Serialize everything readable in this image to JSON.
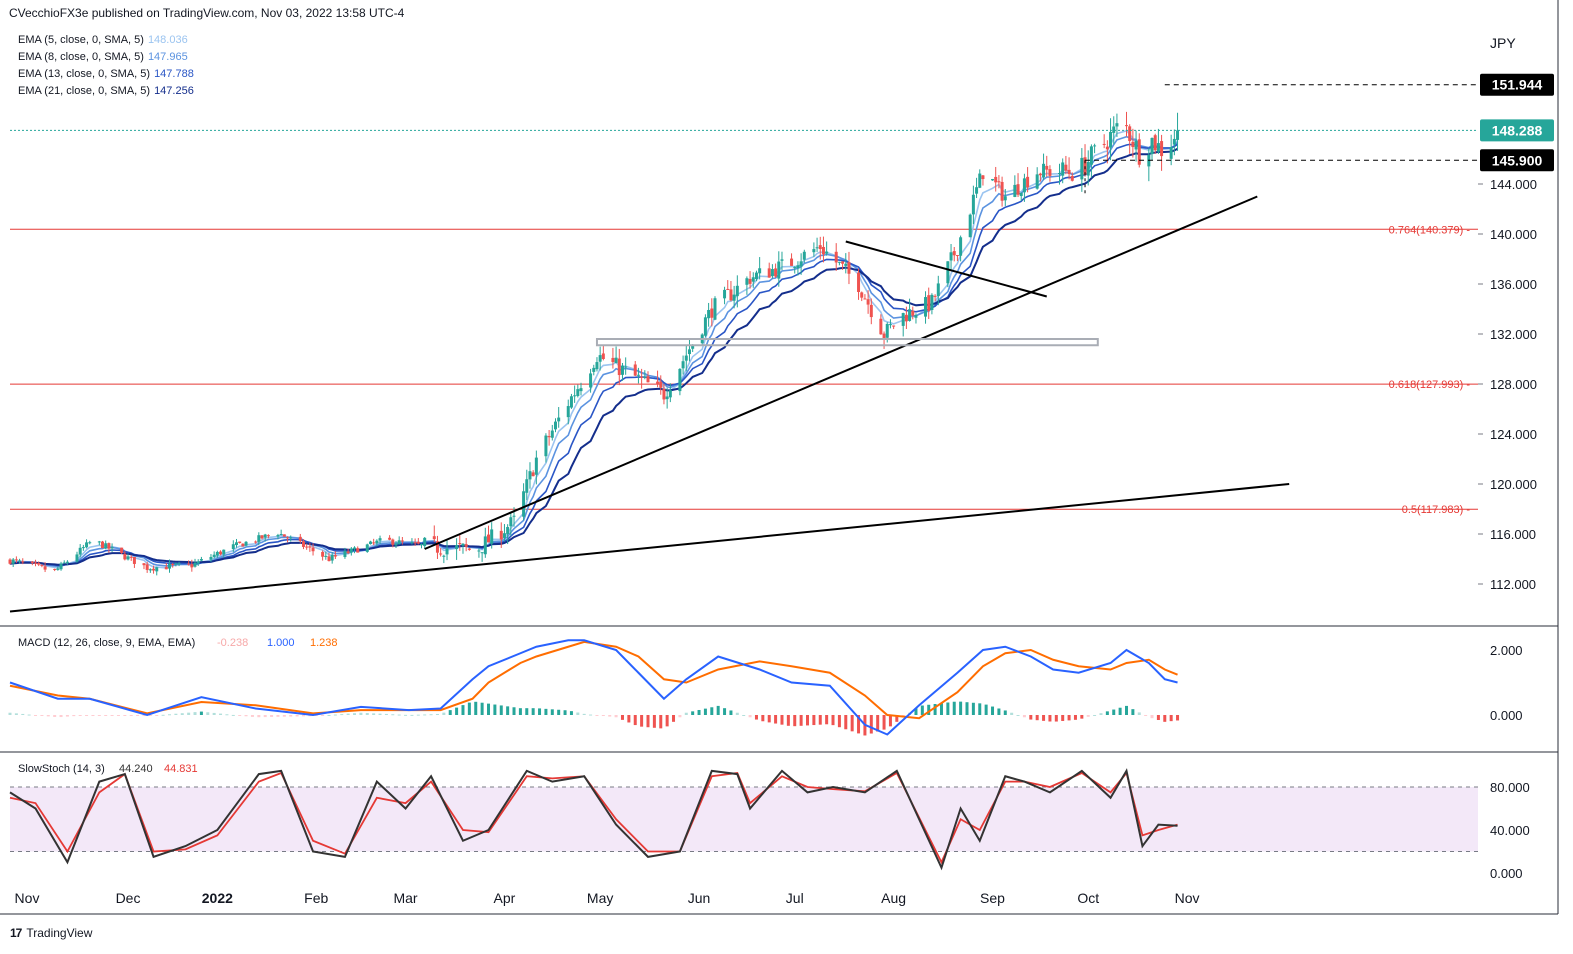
{
  "header": {
    "publisher": "CVecchioFX3e published on TradingView.com, Nov 03, 2022 13:58 UTC-4"
  },
  "footer": {
    "brand": "TradingView",
    "logo_text": "17"
  },
  "colors": {
    "up": "#26a69a",
    "down": "#ef5350",
    "ema5": "#9bc4f0",
    "ema8": "#5b93e0",
    "ema13": "#2a56c6",
    "ema21": "#142e8c",
    "fib": "#e53935",
    "last_price_bg": "#26a69a",
    "macd": "#2962ff",
    "signal": "#ff6d00",
    "stoch_k": "#333333",
    "stoch_d": "#e53935",
    "stoch_band": "#f3e8f8"
  },
  "price_panel": {
    "currency": "JPY",
    "ema_legend": [
      {
        "label": "EMA (5, close, 0, SMA, 5)",
        "value": "148.036",
        "color": "#9bc4f0"
      },
      {
        "label": "EMA (8, close, 0, SMA, 5)",
        "value": "147.965",
        "color": "#5b93e0"
      },
      {
        "label": "EMA (13, close, 0, SMA, 5)",
        "value": "147.788",
        "color": "#2a56c6"
      },
      {
        "label": "EMA (21, close, 0, SMA, 5)",
        "value": "147.256",
        "color": "#142e8c"
      }
    ],
    "y_ticks": [
      "112.000",
      "116.000",
      "120.000",
      "124.000",
      "128.000",
      "132.000",
      "136.000",
      "140.000",
      "144.000"
    ],
    "price_labels": {
      "high": "151.944",
      "last": "148.288",
      "support": "145.900"
    },
    "fib_labels": [
      {
        "text": "0.764(140.379)",
        "value": 140.379
      },
      {
        "text": "0.618(127.993)",
        "value": 127.993
      },
      {
        "text": "0.5(117.983)",
        "value": 117.983
      }
    ]
  },
  "macd_panel": {
    "legend_label": "MACD (12, 26, close, 9, EMA, EMA)",
    "values": [
      "-0.238",
      "1.000",
      "1.238"
    ],
    "y_ticks": [
      "2.000",
      "0.000"
    ]
  },
  "stoch_panel": {
    "legend_label": "SlowStoch (14, 3)",
    "values": [
      "44.240",
      "44.831"
    ],
    "y_ticks": [
      "80.000",
      "40.000",
      "0.000"
    ]
  },
  "x_ticks": [
    "Nov",
    "Dec",
    "2022",
    "Feb",
    "Mar",
    "Apr",
    "May",
    "Jun",
    "Jul",
    "Aug",
    "Sep",
    "Oct",
    "Nov"
  ],
  "chart_data": {
    "type": "candlestick",
    "symbol_currency": "JPY",
    "price_range": [
      109.5,
      155
    ],
    "ema_last": {
      "ema5": 148.036,
      "ema8": 147.965,
      "ema13": 147.788,
      "ema21": 147.256
    },
    "fib_levels": [
      140.379,
      127.993,
      117.983
    ],
    "price_path_days": [
      0,
      14,
      26,
      43,
      57,
      70,
      84,
      100,
      117,
      131,
      146,
      158,
      165,
      175,
      181,
      184,
      193,
      205,
      220,
      232,
      243,
      254,
      266,
      274,
      280,
      289,
      297,
      305,
      312,
      322,
      335,
      349,
      354,
      358,
      362,
      366
    ],
    "price_path_close": [
      113.9,
      113,
      115.5,
      113.3,
      113.5,
      115,
      116.1,
      114,
      115.5,
      115,
      114.7,
      117,
      122,
      126.5,
      129,
      130.3,
      129,
      127.2,
      134,
      136.5,
      137.5,
      139,
      136,
      132,
      133.5,
      134.5,
      139,
      145,
      143,
      145,
      145,
      149,
      146.5,
      147.5,
      146.5,
      148.3
    ],
    "key_points": {
      "mar_2022_low": 114.6,
      "jul_2022_high": 139.4,
      "aug_2022_low": 130.4,
      "oct_2022_high": 151.944,
      "last": 148.288
    },
    "trendlines": [
      {
        "from": {
          "date": "2021-10-25",
          "price": 109.8
        },
        "to": {
          "date": "2022-11-30",
          "price": 120.0
        }
      },
      {
        "from": {
          "date": "2022-03-04",
          "price": 114.8
        },
        "to": {
          "date": "2022-11-20",
          "price": 143.0
        }
      },
      {
        "from": {
          "date": "2022-07-14",
          "price": 139.4
        },
        "to": {
          "date": "2022-09-15",
          "price": 135.0
        }
      }
    ],
    "zone": {
      "price_top": 131.6,
      "price_bottom": 131.1,
      "from": "2022-04-27",
      "to": "2022-10-01"
    },
    "macd": {
      "days": [
        0,
        15,
        25,
        43,
        60,
        77,
        95,
        110,
        125,
        135,
        145,
        150,
        160,
        165,
        175,
        180,
        190,
        197,
        205,
        212,
        222,
        235,
        245,
        257,
        268,
        275,
        285,
        297,
        305,
        312,
        320,
        327,
        335,
        345,
        350,
        357,
        362,
        366
      ],
      "macd": [
        1.0,
        0.5,
        0.5,
        0.0,
        0.55,
        0.2,
        0.0,
        0.25,
        0.15,
        0.2,
        1.1,
        1.5,
        1.9,
        2.1,
        2.3,
        2.3,
        2.0,
        1.3,
        0.5,
        1.1,
        1.8,
        1.4,
        1.0,
        0.9,
        -0.3,
        -0.6,
        0.3,
        1.3,
        2.0,
        2.1,
        1.8,
        1.4,
        1.3,
        1.6,
        2.0,
        1.6,
        1.1,
        1.0
      ],
      "signal": [
        0.9,
        0.6,
        0.5,
        0.05,
        0.4,
        0.3,
        0.05,
        0.15,
        0.15,
        0.15,
        0.5,
        1.0,
        1.6,
        1.8,
        2.1,
        2.25,
        2.1,
        1.8,
        1.1,
        1.0,
        1.4,
        1.65,
        1.5,
        1.3,
        0.6,
        0.0,
        -0.1,
        0.7,
        1.5,
        1.9,
        2.0,
        1.7,
        1.5,
        1.4,
        1.6,
        1.7,
        1.4,
        1.24
      ]
    },
    "stoch": {
      "days": [
        0,
        8,
        18,
        28,
        36,
        45,
        55,
        65,
        78,
        85,
        95,
        105,
        115,
        124,
        132,
        142,
        150,
        162,
        170,
        180,
        190,
        200,
        210,
        220,
        228,
        232,
        242,
        250,
        258,
        268,
        278,
        292,
        298,
        304,
        312,
        318,
        326,
        336,
        345,
        350,
        355,
        360,
        366
      ],
      "k": [
        75,
        60,
        10,
        85,
        92,
        15,
        25,
        40,
        92,
        95,
        20,
        15,
        85,
        60,
        90,
        30,
        40,
        95,
        85,
        90,
        45,
        15,
        20,
        95,
        92,
        60,
        95,
        75,
        80,
        75,
        95,
        5,
        60,
        30,
        90,
        85,
        75,
        95,
        70,
        95,
        25,
        45,
        44
      ],
      "d": [
        70,
        65,
        20,
        75,
        92,
        20,
        22,
        35,
        85,
        93,
        30,
        18,
        70,
        65,
        85,
        40,
        38,
        90,
        88,
        90,
        50,
        20,
        20,
        90,
        93,
        65,
        90,
        80,
        78,
        76,
        93,
        10,
        50,
        40,
        85,
        85,
        80,
        93,
        75,
        93,
        35,
        40,
        45
      ]
    }
  }
}
